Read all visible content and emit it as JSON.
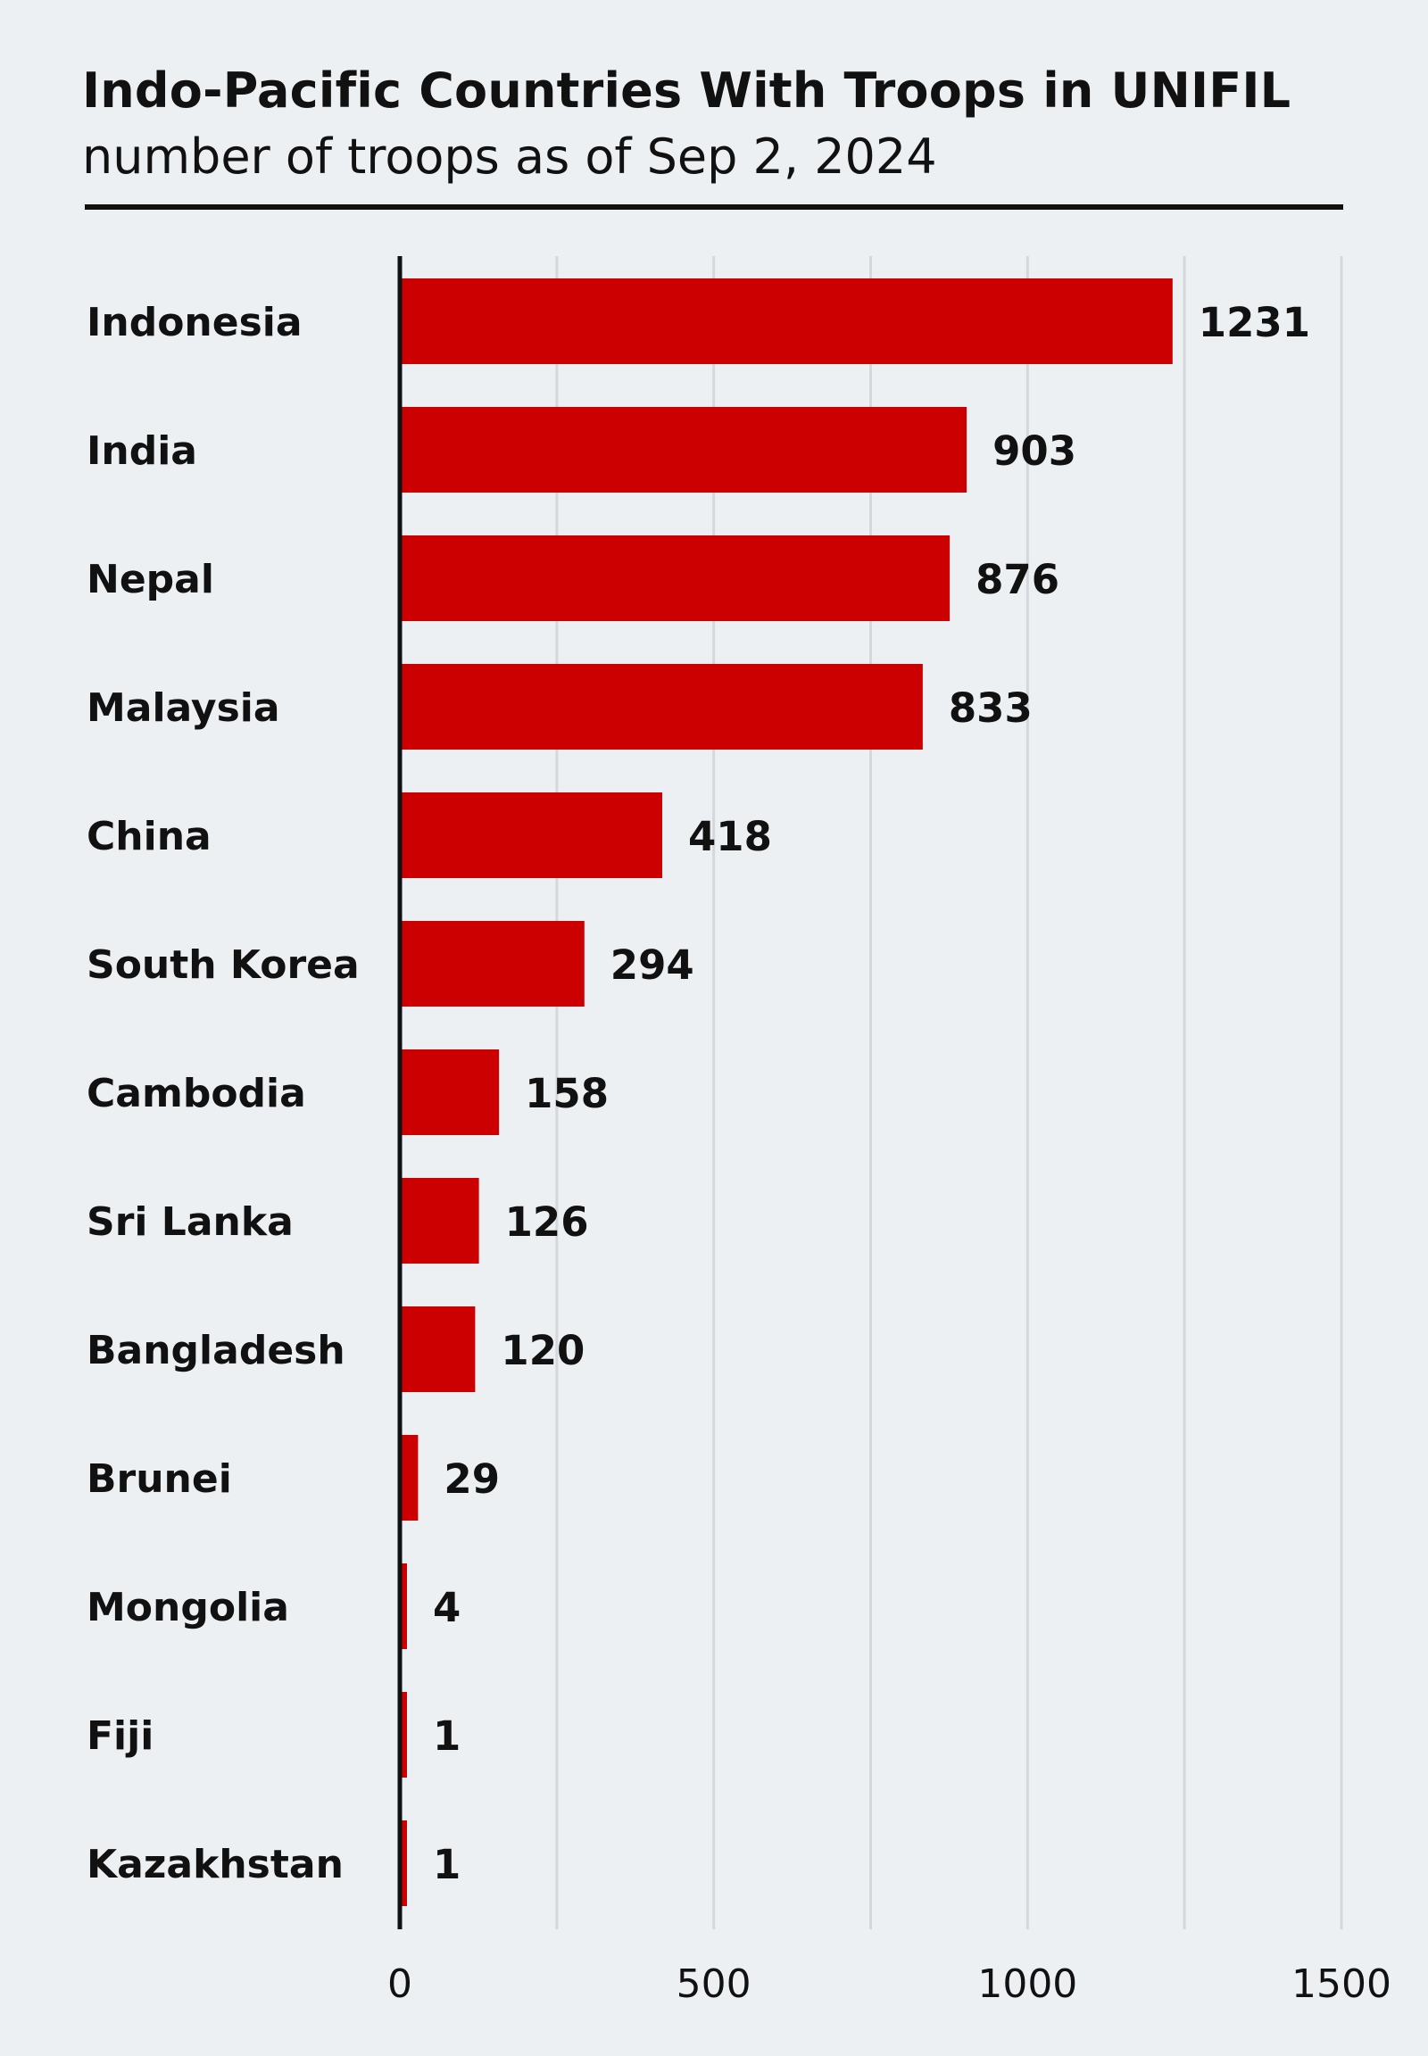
{
  "chart_data": {
    "type": "bar",
    "orientation": "horizontal",
    "title": "Indo-Pacific Countries With Troops in UNIFIL",
    "subtitle": "number of troops as of Sep 2, 2024",
    "xlabel": "",
    "ylabel": "",
    "categories": [
      "Indonesia",
      "India",
      "Nepal",
      "Malaysia",
      "China",
      "South Korea",
      "Cambodia",
      "Sri Lanka",
      "Bangladesh",
      "Brunei",
      "Mongolia",
      "Fiji",
      "Kazakhstan"
    ],
    "values": [
      1231,
      903,
      876,
      833,
      418,
      294,
      158,
      126,
      120,
      29,
      4,
      1,
      1
    ],
    "data_labels": [
      "1231",
      "903",
      "876",
      "833",
      "418",
      "294",
      "158",
      "126",
      "120",
      "29",
      "4",
      "1",
      "1"
    ],
    "xlim": [
      0,
      1500
    ],
    "xticks": [
      0,
      500,
      1000,
      1500
    ],
    "xtick_labels": [
      "0",
      "500",
      "1000",
      "1500"
    ],
    "gridlines": [
      0,
      250,
      500,
      750,
      1000,
      1250,
      1500
    ],
    "grid": true,
    "legend": "none",
    "colors": {
      "bar": "#cc0000",
      "grid": "#d4d8dc",
      "axis": "#111111",
      "background": "#edf0f3",
      "text": "#111111"
    }
  }
}
